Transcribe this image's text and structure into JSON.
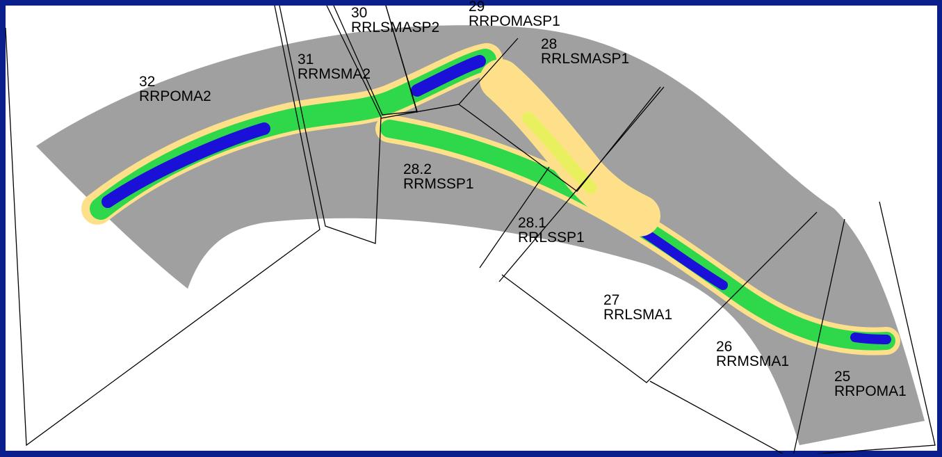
{
  "map": {
    "colors": {
      "background": "#0a1f8c",
      "panel": "#ffffff",
      "floodplain": "#a0a0a0",
      "depth_shallow": "#ffe08a",
      "depth_low": "#e8f060",
      "depth_mid": "#2ed84a",
      "depth_high": "#1aa8e0",
      "depth_deep": "#1a10d8",
      "boundary_line": "#000000"
    },
    "reaches": [
      {
        "id": "32",
        "name": "RRPOMA2"
      },
      {
        "id": "31",
        "name": "RRMSMA2"
      },
      {
        "id": "30",
        "name": "RRLSMASP2"
      },
      {
        "id": "29",
        "name": "RRPOMASP1"
      },
      {
        "id": "28",
        "name": "RRLSMASP1"
      },
      {
        "id": "28.2",
        "name": "RRMSSP1"
      },
      {
        "id": "28.1",
        "name": "RRLSSP1"
      },
      {
        "id": "27",
        "name": "RRLSMA1"
      },
      {
        "id": "26",
        "name": "RRMSMA1"
      },
      {
        "id": "25",
        "name": "RRPOMA1"
      }
    ]
  }
}
